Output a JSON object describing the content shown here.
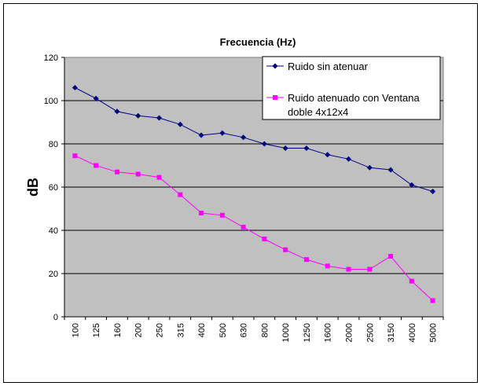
{
  "chart_data": {
    "type": "line",
    "title": "Frecuencia (Hz)",
    "xlabel": "",
    "ylabel": "dB",
    "ylim": [
      0,
      120
    ],
    "yticks": [
      "0",
      "20",
      "40",
      "60",
      "80",
      "100",
      "120"
    ],
    "categories": [
      "100",
      "125",
      "160",
      "200",
      "250",
      "315",
      "400",
      "500",
      "630",
      "800",
      "1000",
      "1250",
      "1600",
      "2000",
      "2500",
      "3150",
      "4000",
      "5000"
    ],
    "grid": true,
    "legend_position": "top-right",
    "plot_background": "#c0c0c0",
    "series": [
      {
        "name": "Ruido sin atenuar",
        "color": "#000080",
        "marker": "diamond",
        "values": [
          106,
          101,
          95,
          93,
          92,
          89,
          84,
          85,
          83,
          80,
          78,
          78,
          75,
          73,
          69,
          68,
          61,
          58
        ]
      },
      {
        "name": "Ruido atenuado con Ventana doble 4x12x4",
        "color": "#ff00ff",
        "marker": "square",
        "values": [
          74.5,
          70,
          67,
          66,
          64.5,
          56.5,
          48,
          47,
          41.5,
          36,
          31,
          26.5,
          23.5,
          22,
          22,
          28,
          16.5,
          7.5
        ]
      }
    ]
  }
}
